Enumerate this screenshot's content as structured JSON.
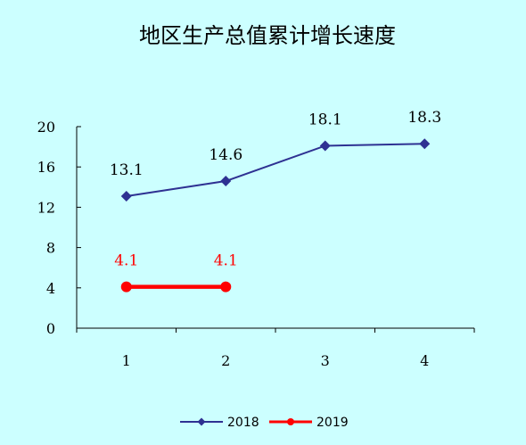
{
  "chart_data": {
    "type": "line",
    "title": "地区生产总值累计增长速度",
    "xlabel": "",
    "ylabel": "",
    "categories": [
      "1",
      "2",
      "3",
      "4"
    ],
    "ylim": [
      0,
      20
    ],
    "yticks": [
      "0",
      "4",
      "8",
      "12",
      "16",
      "20"
    ],
    "grid": false,
    "legend_position": "bottom",
    "series": [
      {
        "name": "2018",
        "values": [
          13.1,
          14.6,
          18.1,
          18.3
        ],
        "labels": [
          "13.1",
          "14.6",
          "18.1",
          "18.3"
        ],
        "color": "#2e3192",
        "label_color": "#000000",
        "marker": "diamond-icon"
      },
      {
        "name": "2019",
        "values": [
          4.1,
          4.1,
          null,
          null
        ],
        "labels": [
          "4.1",
          "4.1",
          "",
          ""
        ],
        "color": "#ff0000",
        "label_color": "#ff0000",
        "marker": "circle-icon"
      }
    ]
  }
}
